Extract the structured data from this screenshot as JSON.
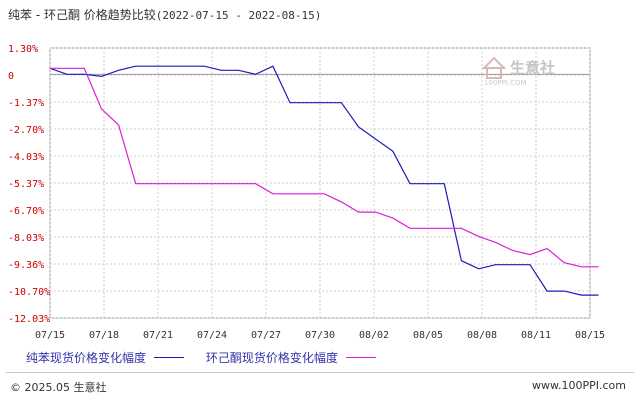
{
  "title": {
    "main": "纯苯 - 环己酮 价格趋势比较",
    "range": "(2022-07-15 - 2022-08-15)"
  },
  "watermark": {
    "logo_text": "生意社",
    "sub_text": "100PPI.COM"
  },
  "footer": {
    "copyright": "© 2025.05 生意社",
    "site": "www.100PPI.com"
  },
  "colors": {
    "benzene": "#1c1cb8",
    "cyclohexanone": "#d81fd8",
    "grid": "#cfcfcf",
    "axis_text": "#cc0000",
    "axis_line": "#999999"
  },
  "chart_data": {
    "type": "line",
    "title": "纯苯 - 环己酮 价格趋势比较(2022-07-15 - 2022-08-15)",
    "xlabel": "",
    "ylabel": "",
    "x_ticks": [
      "07/15",
      "07/18",
      "07/21",
      "07/24",
      "07/27",
      "07/30",
      "08/02",
      "08/05",
      "08/08",
      "08/11",
      "08/15"
    ],
    "y_ticks": [
      "1.30%",
      "0",
      "-1.37%",
      "-2.70%",
      "-4.03%",
      "-5.37%",
      "-6.70%",
      "-8.03%",
      "-9.36%",
      "-10.70%",
      "-12.03%"
    ],
    "ylim": [
      -12.03,
      1.3
    ],
    "xlim": [
      "2022-07-15",
      "2022-08-15"
    ],
    "grid": true,
    "legend_position": "bottom",
    "series": [
      {
        "name": "纯苯现货价格变化幅度",
        "color": "#1c1cb8",
        "points": [
          [
            "2022-07-15",
            0.3
          ],
          [
            "2022-07-16",
            0.0
          ],
          [
            "2022-07-17",
            0.0
          ],
          [
            "2022-07-18",
            -0.1
          ],
          [
            "2022-07-19",
            0.2
          ],
          [
            "2022-07-20",
            0.4
          ],
          [
            "2022-07-21",
            0.4
          ],
          [
            "2022-07-22",
            0.4
          ],
          [
            "2022-07-23",
            0.4
          ],
          [
            "2022-07-24",
            0.4
          ],
          [
            "2022-07-25",
            0.2
          ],
          [
            "2022-07-26",
            0.2
          ],
          [
            "2022-07-27",
            0.0
          ],
          [
            "2022-07-28",
            0.4
          ],
          [
            "2022-07-29",
            -1.4
          ],
          [
            "2022-07-30",
            -1.4
          ],
          [
            "2022-07-31",
            -1.4
          ],
          [
            "2022-08-01",
            -1.4
          ],
          [
            "2022-08-02",
            -2.6
          ],
          [
            "2022-08-03",
            -3.2
          ],
          [
            "2022-08-04",
            -3.8
          ],
          [
            "2022-08-05",
            -5.4
          ],
          [
            "2022-08-06",
            -5.4
          ],
          [
            "2022-08-07",
            -5.4
          ],
          [
            "2022-08-08",
            -9.2
          ],
          [
            "2022-08-09",
            -9.6
          ],
          [
            "2022-08-10",
            -9.4
          ],
          [
            "2022-08-11",
            -9.4
          ],
          [
            "2022-08-12",
            -9.4
          ],
          [
            "2022-08-13",
            -10.7
          ],
          [
            "2022-08-14",
            -10.7
          ],
          [
            "2022-08-15",
            -10.9
          ],
          [
            "2022-08-16",
            -10.9
          ]
        ]
      },
      {
        "name": "环己酮现货价格变化幅度",
        "color": "#d81fd8",
        "points": [
          [
            "2022-07-15",
            0.3
          ],
          [
            "2022-07-16",
            0.3
          ],
          [
            "2022-07-17",
            0.3
          ],
          [
            "2022-07-18",
            -1.7
          ],
          [
            "2022-07-19",
            -2.5
          ],
          [
            "2022-07-20",
            -5.4
          ],
          [
            "2022-07-21",
            -5.4
          ],
          [
            "2022-07-22",
            -5.4
          ],
          [
            "2022-07-23",
            -5.4
          ],
          [
            "2022-07-24",
            -5.4
          ],
          [
            "2022-07-25",
            -5.4
          ],
          [
            "2022-07-26",
            -5.4
          ],
          [
            "2022-07-27",
            -5.4
          ],
          [
            "2022-07-28",
            -5.9
          ],
          [
            "2022-07-29",
            -5.9
          ],
          [
            "2022-07-30",
            -5.9
          ],
          [
            "2022-07-31",
            -5.9
          ],
          [
            "2022-08-01",
            -6.3
          ],
          [
            "2022-08-02",
            -6.8
          ],
          [
            "2022-08-03",
            -6.8
          ],
          [
            "2022-08-04",
            -7.1
          ],
          [
            "2022-08-05",
            -7.6
          ],
          [
            "2022-08-06",
            -7.6
          ],
          [
            "2022-08-07",
            -7.6
          ],
          [
            "2022-08-08",
            -7.6
          ],
          [
            "2022-08-09",
            -8.0
          ],
          [
            "2022-08-10",
            -8.3
          ],
          [
            "2022-08-11",
            -8.7
          ],
          [
            "2022-08-12",
            -8.9
          ],
          [
            "2022-08-13",
            -8.6
          ],
          [
            "2022-08-14",
            -9.3
          ],
          [
            "2022-08-15",
            -9.5
          ],
          [
            "2022-08-16",
            -9.5
          ]
        ]
      }
    ]
  }
}
